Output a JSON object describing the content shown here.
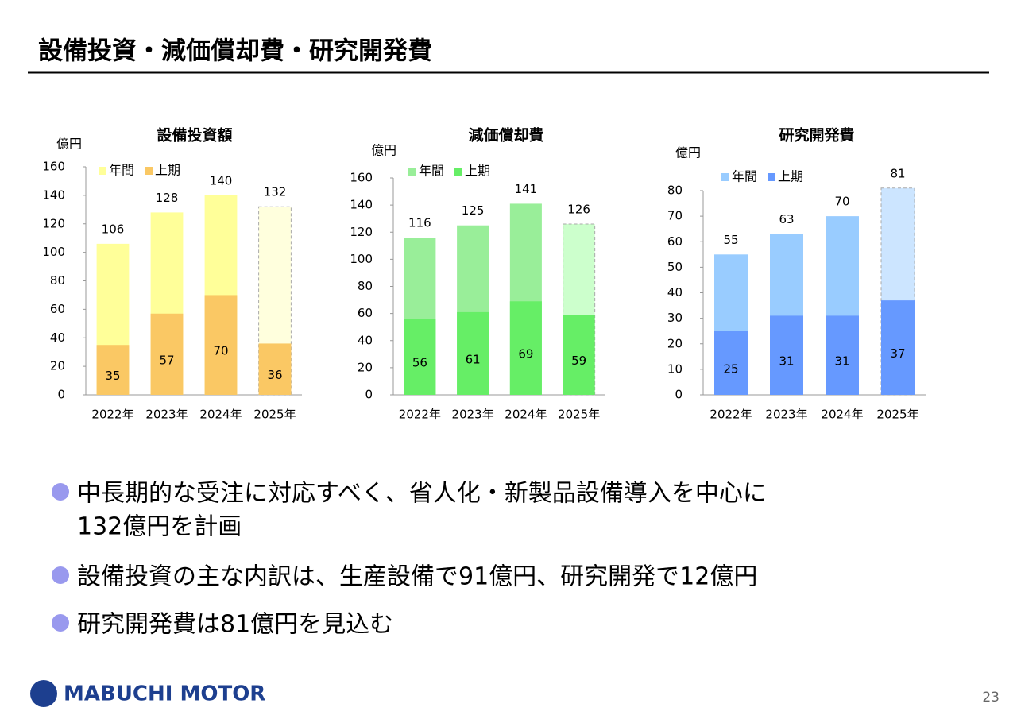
{
  "title": "設備投資・減価償却費・研究開発費",
  "chart_data": [
    {
      "type": "bar",
      "title": "設備投資額",
      "y_label": "億円",
      "categories": [
        "2022年",
        "2023年",
        "2024年",
        "2025年"
      ],
      "ylim": [
        0,
        160
      ],
      "yticks": [
        0,
        20,
        40,
        60,
        80,
        100,
        120,
        140,
        160
      ],
      "series": [
        {
          "name": "年間",
          "color": "#ffff99",
          "forecast_color": "#ffffdd",
          "values": [
            106,
            128,
            140,
            132
          ]
        },
        {
          "name": "上期",
          "color": "#fac864",
          "forecast_color": "#fac864",
          "values": [
            35,
            57,
            70,
            36
          ]
        }
      ]
    },
    {
      "type": "bar",
      "title": "減価償却費",
      "y_label": "億円",
      "categories": [
        "2022年",
        "2023年",
        "2024年",
        "2025年"
      ],
      "ylim": [
        0,
        160
      ],
      "yticks": [
        0,
        20,
        40,
        60,
        80,
        100,
        120,
        140,
        160
      ],
      "series": [
        {
          "name": "年間",
          "color": "#99ee99",
          "forecast_color": "#ccffcc",
          "values": [
            116,
            125,
            141,
            126
          ]
        },
        {
          "name": "上期",
          "color": "#66ee66",
          "forecast_color": "#66ee66",
          "values": [
            56,
            61,
            69,
            59
          ]
        }
      ]
    },
    {
      "type": "bar",
      "title": "研究開発費",
      "y_label": "億円",
      "categories": [
        "2022年",
        "2023年",
        "2024年",
        "2025年"
      ],
      "ylim": [
        0,
        80
      ],
      "yticks": [
        0,
        10,
        20,
        30,
        40,
        50,
        60,
        70,
        80
      ],
      "series": [
        {
          "name": "年間",
          "color": "#99ccff",
          "forecast_color": "#cce5ff",
          "values": [
            55,
            63,
            70,
            81
          ]
        },
        {
          "name": "上期",
          "color": "#6699ff",
          "forecast_color": "#6699ff",
          "values": [
            25,
            31,
            31,
            37
          ]
        }
      ]
    }
  ],
  "bullets": [
    "中長期的な受注に対応すべく、省人化・新製品設備導入を中心に",
    "132億円を計画",
    "設備投資の主な内訳は、生産設備で91億円、研究開発で12億円",
    "研究開発費は81億円を見込む"
  ],
  "logo": "MABUCHI MOTOR",
  "page_number": "23"
}
